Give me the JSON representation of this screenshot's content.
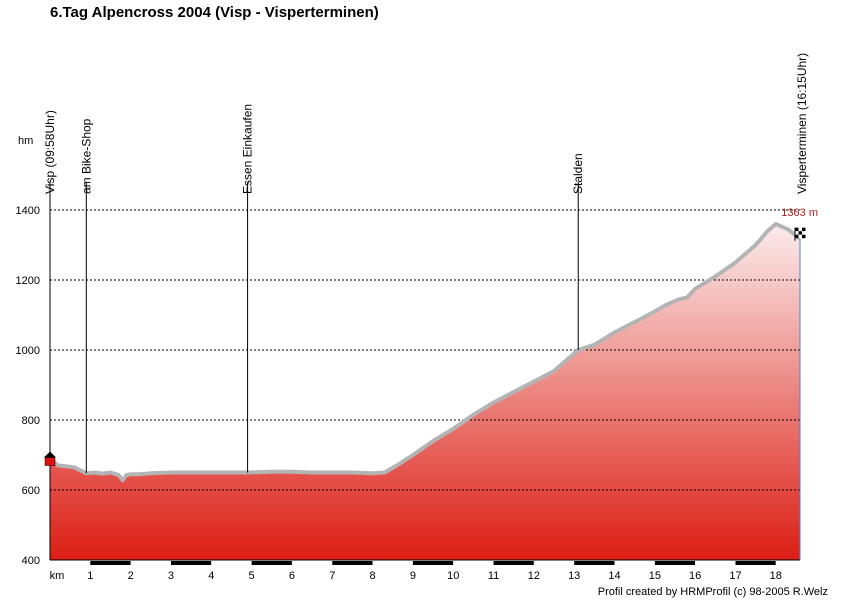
{
  "title": "6.Tag Alpencross 2004 (Visp - Visperterminen)",
  "credit": "Profil created by HRMProfil (c) 98-2005 R.Welz",
  "colors": {
    "fill_top": "#fbecec",
    "fill_bottom": "#dc1e14",
    "profile_line": "#b4b4b4",
    "grid": "#000000",
    "end_label": "#b41e1e"
  },
  "chart_data": {
    "type": "area",
    "title": "6.Tag Alpencross 2004 (Visp - Visperterminen)",
    "ylabel": "hm",
    "xlabel": "km",
    "xlim": [
      0,
      18.6
    ],
    "ylim": [
      400,
      1400
    ],
    "x_ticks": [
      "1",
      "2",
      "3",
      "4",
      "5",
      "6",
      "7",
      "8",
      "9",
      "10",
      "11",
      "12",
      "13",
      "14",
      "15",
      "16",
      "17",
      "18"
    ],
    "y_ticks": [
      "400",
      "600",
      "800",
      "1000",
      "1200",
      "1400"
    ],
    "grid": "horizontal dashed",
    "end_label": "1363 m",
    "waypoints": [
      {
        "km": 0.0,
        "label": "Visp (09:58Uhr)"
      },
      {
        "km": 0.9,
        "label": "am Bike-Shop"
      },
      {
        "km": 4.9,
        "label": "Essen Einkaufen"
      },
      {
        "km": 13.1,
        "label": "Stalden"
      },
      {
        "km": 18.6,
        "label": "Visperterminen (16:15Uhr)"
      }
    ],
    "series": [
      {
        "x": [
          0,
          0.2,
          0.4,
          0.6,
          0.9,
          1.1,
          1.3,
          1.5,
          1.7,
          1.8,
          1.9,
          2.0,
          2.2,
          2.5,
          3.0,
          3.5,
          4.0,
          4.5,
          4.9,
          5.5,
          6.0,
          6.5,
          7.0,
          7.5,
          8.0,
          8.3,
          8.6,
          9.0,
          9.5,
          10.0,
          10.5,
          11.0,
          11.5,
          12.0,
          12.5,
          13.1,
          13.5,
          14.0,
          14.5,
          15.0,
          15.3,
          15.6,
          15.8,
          16.0,
          16.5,
          17.0,
          17.5,
          17.8,
          18.0,
          18.3,
          18.6
        ],
        "y": [
          690,
          670,
          668,
          665,
          648,
          650,
          647,
          650,
          643,
          628,
          643,
          645,
          645,
          648,
          650,
          650,
          650,
          650,
          650,
          652,
          652,
          650,
          650,
          650,
          648,
          650,
          670,
          700,
          740,
          775,
          815,
          850,
          880,
          910,
          940,
          1000,
          1015,
          1050,
          1080,
          1110,
          1130,
          1145,
          1150,
          1175,
          1210,
          1250,
          1300,
          1340,
          1360,
          1345,
          1318
        ]
      }
    ]
  }
}
